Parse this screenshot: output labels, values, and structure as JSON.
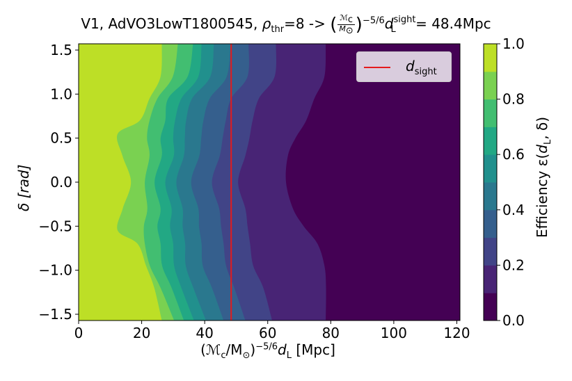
{
  "chart_data": {
    "type": "contourf",
    "title": {
      "prefix": "V1, AdVO3LowT1800545, ",
      "rho": "ρ",
      "rho_sub": "thr",
      "rho_value": "=8 -> ",
      "frac_num": "ℳ",
      "frac_num_sub": "c",
      "frac_den": "M",
      "frac_den_sub": "⊙",
      "exponent": "−5/6",
      "d": "d",
      "d_sub": "L",
      "d_sup": "sight",
      "result": " = 48.4Mpc"
    },
    "xlabel": {
      "main": "(ℳ",
      "sub1": "c",
      "mid": "/M",
      "sub2": "⊙",
      "close": ")",
      "sup": "−5/6",
      "d": "d",
      "d_sub": "L",
      "unit": " [Mpc]"
    },
    "ylabel": {
      "main": "δ [rad]"
    },
    "colorbar_label": {
      "main": "Efficiency ε(",
      "d": "d",
      "d_sub": "L",
      "rest": ", δ)"
    },
    "xlim": [
      0,
      121
    ],
    "ylim": [
      -1.571,
      1.571
    ],
    "xticks": [
      0,
      20,
      40,
      60,
      80,
      100,
      120
    ],
    "xtick_labels": [
      "0",
      "20",
      "40",
      "60",
      "80",
      "100",
      "120"
    ],
    "yticks": [
      1.5,
      1.0,
      0.5,
      0.0,
      -0.5,
      -1.0,
      -1.5
    ],
    "ytick_labels": [
      "1.5",
      "1.0",
      "0.5",
      "0.0",
      "−0.5",
      "−1.0",
      "−1.5"
    ],
    "colorbar_ticks": [
      1.0,
      0.8,
      0.6,
      0.4,
      0.2,
      0.0
    ],
    "colorbar_tick_labels": [
      "1.0",
      "0.8",
      "0.6",
      "0.4",
      "0.2",
      "0.0"
    ],
    "levels": [
      0.0,
      0.1,
      0.2,
      0.3,
      0.4,
      0.5,
      0.6,
      0.7,
      0.8,
      0.9,
      1.0
    ],
    "level_colors": [
      "#440154",
      "#482475",
      "#414487",
      "#355f8d",
      "#2a788e",
      "#21908d",
      "#22a884",
      "#42be71",
      "#7ad151",
      "#bddf26",
      "#dde318"
    ],
    "contour_boundaries": [
      {
        "level": 0.9,
        "x_at_delta": [
          [
            1.571,
            26.4
          ],
          [
            1.2,
            26.0
          ],
          [
            0.95,
            22.5
          ],
          [
            0.7,
            19.4
          ],
          [
            0.55,
            12.4
          ],
          [
            0.3,
            13.9
          ],
          [
            0.0,
            16.6
          ],
          [
            -0.3,
            14.0
          ],
          [
            -0.55,
            12.4
          ],
          [
            -0.7,
            18.7
          ],
          [
            -0.95,
            21.4
          ],
          [
            -1.2,
            24.0
          ],
          [
            -1.571,
            26.4
          ]
        ]
      },
      {
        "level": 0.8,
        "x_at_delta": [
          [
            1.571,
            31.5
          ],
          [
            1.2,
            29.9
          ],
          [
            0.95,
            25.0
          ],
          [
            0.7,
            22.5
          ],
          [
            0.5,
            21.7
          ],
          [
            0.3,
            22.5
          ],
          [
            0.0,
            21.0
          ],
          [
            -0.3,
            21.8
          ],
          [
            -0.5,
            20.7
          ],
          [
            -0.7,
            21.0
          ],
          [
            -0.95,
            22.6
          ],
          [
            -1.2,
            26.0
          ],
          [
            -1.571,
            30.3
          ]
        ]
      },
      {
        "level": 0.7,
        "x_at_delta": [
          [
            1.571,
            36.3
          ],
          [
            1.2,
            34.6
          ],
          [
            0.95,
            28.4
          ],
          [
            0.7,
            27.5
          ],
          [
            0.5,
            26.0
          ],
          [
            0.3,
            26.4
          ],
          [
            0.0,
            24.1
          ],
          [
            -0.3,
            26.0
          ],
          [
            -0.5,
            25.0
          ],
          [
            -0.7,
            26.0
          ],
          [
            -0.95,
            26.5
          ],
          [
            -1.2,
            29.5
          ],
          [
            -1.571,
            33.4
          ]
        ]
      },
      {
        "level": 0.6,
        "x_at_delta": [
          [
            1.571,
            39.0
          ],
          [
            1.2,
            38.0
          ],
          [
            0.95,
            32.6
          ],
          [
            0.7,
            30.6
          ],
          [
            0.5,
            30.0
          ],
          [
            0.3,
            30.2
          ],
          [
            0.0,
            27.5
          ],
          [
            -0.3,
            29.5
          ],
          [
            -0.5,
            29.0
          ],
          [
            -0.7,
            30.0
          ],
          [
            -0.95,
            30.3
          ],
          [
            -1.2,
            32.6
          ],
          [
            -1.571,
            36.6
          ]
        ]
      },
      {
        "level": 0.5,
        "x_at_delta": [
          [
            1.571,
            42.9
          ],
          [
            1.2,
            41.8
          ],
          [
            0.95,
            36.0
          ],
          [
            0.7,
            34.1
          ],
          [
            0.5,
            33.7
          ],
          [
            0.3,
            33.4
          ],
          [
            0.0,
            31.0
          ],
          [
            -0.3,
            33.0
          ],
          [
            -0.5,
            33.0
          ],
          [
            -0.7,
            33.8
          ],
          [
            -0.95,
            34.0
          ],
          [
            -1.2,
            36.4
          ],
          [
            -1.571,
            40.4
          ]
        ]
      },
      {
        "level": 0.4,
        "x_at_delta": [
          [
            1.571,
            48.2
          ],
          [
            1.2,
            47.0
          ],
          [
            0.95,
            41.6
          ],
          [
            0.7,
            39.6
          ],
          [
            0.5,
            38.9
          ],
          [
            0.3,
            38.3
          ],
          [
            0.0,
            35.7
          ],
          [
            -0.3,
            38.0
          ],
          [
            -0.5,
            38.2
          ],
          [
            -0.7,
            39.0
          ],
          [
            -0.95,
            39.4
          ],
          [
            -1.2,
            42.3
          ],
          [
            -1.571,
            46.0
          ]
        ]
      },
      {
        "level": 0.3,
        "x_at_delta": [
          [
            1.571,
            53.9
          ],
          [
            1.2,
            53.6
          ],
          [
            0.95,
            48.4
          ],
          [
            0.7,
            46.7
          ],
          [
            0.5,
            45.7
          ],
          [
            0.3,
            44.8
          ],
          [
            0.0,
            42.3
          ],
          [
            -0.3,
            44.6
          ],
          [
            -0.5,
            45.2
          ],
          [
            -0.7,
            46.0
          ],
          [
            -0.95,
            46.8
          ],
          [
            -1.2,
            49.4
          ],
          [
            -1.571,
            52.9
          ]
        ]
      },
      {
        "level": 0.2,
        "x_at_delta": [
          [
            1.571,
            62.6
          ],
          [
            1.2,
            62.2
          ],
          [
            0.95,
            57.2
          ],
          [
            0.7,
            55.2
          ],
          [
            0.5,
            54.2
          ],
          [
            0.3,
            52.9
          ],
          [
            0.0,
            50.6
          ],
          [
            -0.3,
            52.9
          ],
          [
            -0.5,
            53.6
          ],
          [
            -0.7,
            54.4
          ],
          [
            -0.95,
            55.4
          ],
          [
            -1.2,
            58.6
          ],
          [
            -1.571,
            61.4
          ]
        ]
      },
      {
        "level": 0.1,
        "x_at_delta": [
          [
            1.571,
            78.4
          ],
          [
            1.2,
            78.0
          ],
          [
            0.95,
            74.8
          ],
          [
            0.7,
            72.2
          ],
          [
            0.5,
            68.8
          ],
          [
            0.3,
            66.4
          ],
          [
            0.0,
            65.8
          ],
          [
            -0.3,
            68.0
          ],
          [
            -0.5,
            71.4
          ],
          [
            -0.7,
            75.8
          ],
          [
            -0.95,
            78.0
          ],
          [
            -1.2,
            78.5
          ],
          [
            -1.571,
            78.4
          ]
        ]
      }
    ],
    "vline": {
      "x": 48.4,
      "color": "#e41a1c"
    },
    "legend": {
      "placement": "upper right",
      "label_d": "d",
      "label_sub": "sight"
    }
  }
}
